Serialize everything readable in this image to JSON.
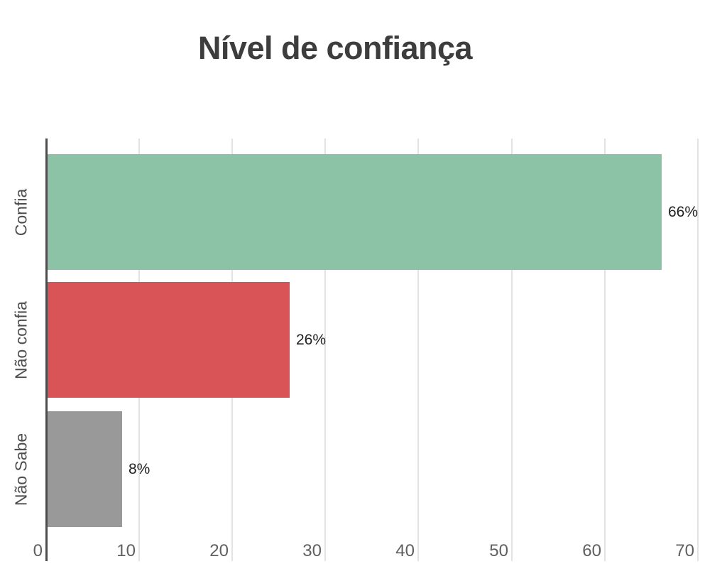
{
  "chart_data": {
    "type": "bar",
    "orientation": "horizontal",
    "title": "Nível de confiança",
    "categories": [
      "Confia",
      "Não confia",
      "Não Sabe"
    ],
    "values": [
      66,
      26,
      8
    ],
    "value_labels": [
      "66%",
      "26%",
      "8%"
    ],
    "bar_colors": [
      "#8cc3a6",
      "#d85456",
      "#999999"
    ],
    "xlabel": "",
    "ylabel": "",
    "xlim": [
      0,
      72
    ],
    "x_ticks": [
      0,
      10,
      20,
      30,
      40,
      50,
      60,
      70
    ],
    "grid": true,
    "legend": "none"
  },
  "colors": {
    "background": "#ffffff",
    "title_text": "#3d3d3d",
    "axis_line": "#4d4d4d",
    "gridline": "#e3e3e3",
    "tick_text": "#5f5f5f",
    "category_text": "#4e4e4e",
    "value_text": "#212121"
  }
}
